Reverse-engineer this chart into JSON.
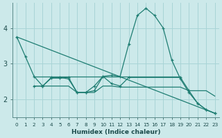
{
  "xlabel": "Humidex (Indice chaleur)",
  "background_color": "#cce9ea",
  "grid_color": "#a8d4d6",
  "line_color": "#1e7d72",
  "xlim": [
    -0.5,
    23.5
  ],
  "ylim": [
    1.5,
    4.7
  ],
  "yticks": [
    2,
    3,
    4
  ],
  "xticks": [
    0,
    1,
    2,
    3,
    4,
    5,
    6,
    7,
    8,
    9,
    10,
    11,
    12,
    13,
    14,
    15,
    16,
    17,
    18,
    19,
    20,
    21,
    22,
    23
  ],
  "series1_x": [
    0,
    1,
    2,
    3,
    4,
    5,
    6,
    7,
    8,
    9,
    10,
    11,
    12,
    13,
    14,
    15,
    16,
    17,
    18,
    19,
    20,
    21,
    22,
    23
  ],
  "series1_y": [
    3.75,
    3.2,
    2.65,
    2.38,
    2.62,
    2.62,
    2.58,
    2.2,
    2.2,
    2.25,
    2.65,
    2.68,
    2.65,
    3.55,
    4.35,
    4.55,
    4.35,
    4.0,
    3.1,
    2.58,
    2.2,
    1.9,
    1.72,
    1.62
  ],
  "series2_x": [
    2,
    3,
    4,
    5,
    6,
    7,
    8,
    9,
    10,
    11,
    12,
    13,
    14,
    15,
    16,
    17,
    18,
    19
  ],
  "series2_y": [
    2.65,
    2.65,
    2.65,
    2.65,
    2.65,
    2.65,
    2.65,
    2.65,
    2.65,
    2.65,
    2.65,
    2.65,
    2.65,
    2.65,
    2.65,
    2.65,
    2.65,
    2.65
  ],
  "series3_x": [
    0,
    23
  ],
  "series3_y": [
    3.75,
    1.62
  ],
  "series4_x": [
    2,
    3,
    4,
    5,
    6,
    7,
    8,
    9,
    10,
    11,
    12,
    13,
    14,
    15,
    16,
    17,
    18,
    19,
    20,
    21,
    22,
    23
  ],
  "series4_y": [
    2.38,
    2.38,
    2.38,
    2.38,
    2.38,
    2.2,
    2.2,
    2.2,
    2.38,
    2.38,
    2.35,
    2.35,
    2.35,
    2.35,
    2.35,
    2.35,
    2.35,
    2.35,
    2.25,
    2.25,
    2.25,
    2.1
  ],
  "series5_x": [
    2,
    3,
    4,
    5,
    6,
    7,
    8,
    9,
    10,
    11,
    12,
    13,
    19,
    20,
    21,
    22,
    23
  ],
  "series5_y": [
    2.38,
    2.38,
    2.6,
    2.6,
    2.62,
    2.2,
    2.2,
    2.38,
    2.65,
    2.45,
    2.38,
    2.62,
    2.62,
    2.25,
    1.9,
    1.72,
    1.62
  ]
}
